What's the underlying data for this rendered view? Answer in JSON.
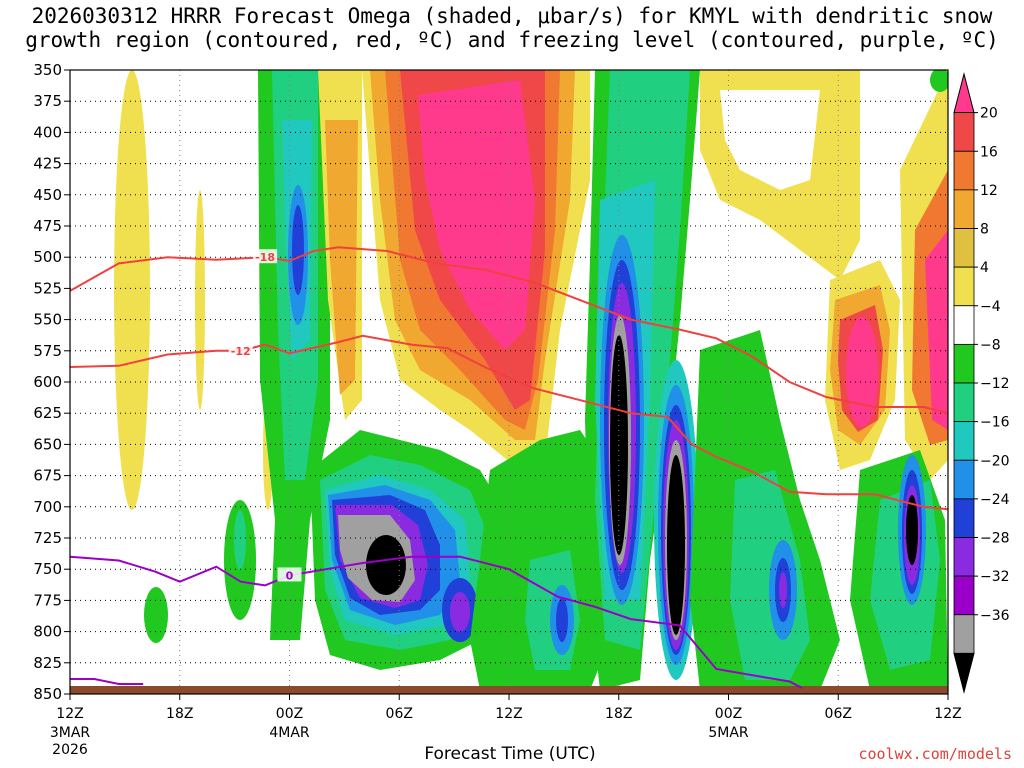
{
  "title_line1": "2026030312 HRRR Forecast Omega (shaded, μbar/s) for KMYL with dendritic snow",
  "title_line2": "growth region (contoured, red, ºC) and freezing level (contoured, purple, ºC)",
  "xlabel": "Forecast Time (UTC)",
  "credit": "coolwx.com/models",
  "colors": {
    "ground": "#8b4a2b",
    "dgz_contour": "#f04040",
    "freezing_contour": "#9a00c8",
    "grid": "#808080"
  },
  "chart_data": {
    "type": "heatmap",
    "x_hours_from_start": [
      0,
      36
    ],
    "x_ticks": [
      {
        "hour": 0,
        "label": "12Z",
        "label2": "3MAR",
        "label3": "2026"
      },
      {
        "hour": 4.5,
        "label": "18Z"
      },
      {
        "hour": 9,
        "label": "00Z",
        "label2": "4MAR"
      },
      {
        "hour": 13.5,
        "label": "06Z"
      },
      {
        "hour": 18,
        "label": "12Z"
      },
      {
        "hour": 22.5,
        "label": "18Z"
      },
      {
        "hour": 27,
        "label": "00Z",
        "label2": "5MAR"
      },
      {
        "hour": 31.5,
        "label": "06Z"
      },
      {
        "hour": 36,
        "label": "12Z"
      }
    ],
    "y_pressure_levels": [
      350,
      375,
      400,
      425,
      450,
      475,
      500,
      525,
      550,
      575,
      600,
      625,
      650,
      675,
      700,
      725,
      750,
      775,
      800,
      825,
      850
    ],
    "ylim": [
      350,
      850
    ],
    "colorbar": {
      "labels": [
        "20",
        "16",
        "12",
        "8",
        "4",
        "−4",
        "−8",
        "−12",
        "−16",
        "−20",
        "−24",
        "−28",
        "−32",
        "−36"
      ],
      "colors": [
        "#ff3a8c",
        "#f04848",
        "#f07830",
        "#f0a830",
        "#e0c040",
        "#f0e050",
        "#ffffff",
        "#20c820",
        "#20d080",
        "#20c8c0",
        "#2090e8",
        "#2040d8",
        "#8a2be2",
        "#9a00c8",
        "#a0a0a0",
        "#000000"
      ]
    },
    "contours": [
      {
        "label": "-18",
        "color": "#f04040",
        "points": [
          [
            0,
            527
          ],
          [
            2,
            505
          ],
          [
            4,
            500
          ],
          [
            6,
            502
          ],
          [
            8,
            500
          ],
          [
            9,
            503
          ],
          [
            10,
            495
          ],
          [
            11,
            492
          ],
          [
            13,
            495
          ],
          [
            15,
            505
          ],
          [
            17,
            510
          ],
          [
            19,
            520
          ],
          [
            21,
            535
          ],
          [
            23,
            550
          ],
          [
            25,
            558
          ],
          [
            26.5,
            565
          ],
          [
            28,
            580
          ],
          [
            29.5,
            600
          ],
          [
            31,
            612
          ],
          [
            33,
            620
          ],
          [
            35,
            620
          ],
          [
            36,
            625
          ]
        ]
      },
      {
        "label": "-12",
        "color": "#f04040",
        "points": [
          [
            0,
            588
          ],
          [
            2,
            587
          ],
          [
            4,
            578
          ],
          [
            6,
            575
          ],
          [
            7,
            575
          ],
          [
            8,
            570
          ],
          [
            9,
            577
          ],
          [
            11,
            568
          ],
          [
            12,
            563
          ],
          [
            14,
            570
          ],
          [
            15.5,
            573
          ],
          [
            17,
            588
          ],
          [
            19,
            605
          ],
          [
            21,
            615
          ],
          [
            23,
            625
          ],
          [
            24.5,
            628
          ],
          [
            25.5,
            650
          ],
          [
            26.5,
            660
          ],
          [
            28,
            672
          ],
          [
            29.5,
            688
          ],
          [
            31,
            690
          ],
          [
            33,
            690
          ],
          [
            35,
            700
          ],
          [
            36,
            702
          ]
        ]
      },
      {
        "label": "0",
        "color": "#9a00c8",
        "points": [
          [
            0,
            740
          ],
          [
            2,
            743
          ],
          [
            3.5,
            752
          ],
          [
            4.5,
            760
          ],
          [
            6,
            748
          ],
          [
            7,
            760
          ],
          [
            8,
            763
          ],
          [
            9,
            755
          ],
          [
            10.5,
            750
          ],
          [
            12,
            745
          ],
          [
            14,
            740
          ],
          [
            16,
            740
          ],
          [
            18,
            750
          ],
          [
            20,
            772
          ],
          [
            21.5,
            780
          ],
          [
            23,
            790
          ],
          [
            25,
            795
          ],
          [
            26.5,
            830
          ],
          [
            28,
            835
          ],
          [
            29.5,
            840
          ],
          [
            30,
            845
          ]
        ]
      },
      {
        "label": "",
        "color": "#9a00c8",
        "points": [
          [
            0,
            838
          ],
          [
            1,
            838
          ],
          [
            2,
            842
          ],
          [
            3,
            842
          ]
        ]
      }
    ]
  }
}
